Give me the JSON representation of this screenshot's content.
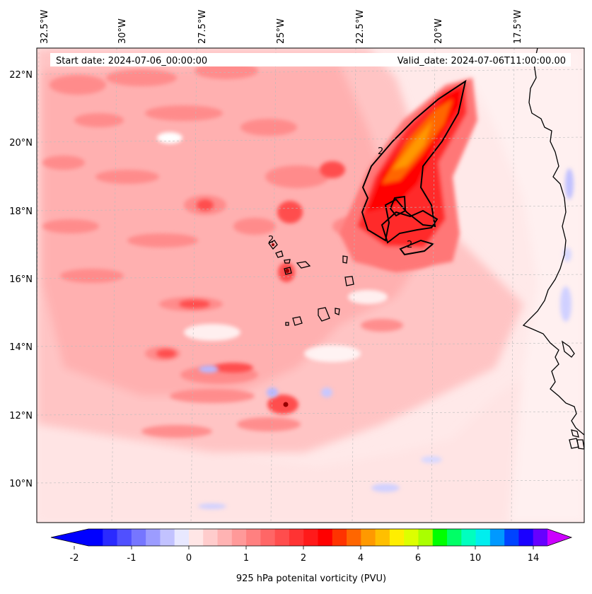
{
  "header": {
    "start_date": "Start date: 2024-07-06_00:00:00",
    "valid_date": "Valid_date: 2024-07-06T11:00:00.00"
  },
  "map": {
    "lon_labels": [
      "32.5°W",
      "30°W",
      "27.5°W",
      "25°W",
      "22.5°W",
      "20°W",
      "17.5°W"
    ],
    "lat_labels": [
      "22°N",
      "20°N",
      "18°N",
      "16°N",
      "14°N",
      "12°N",
      "10°N"
    ],
    "contour_labels": [
      "2",
      "2",
      "2"
    ],
    "gridlines": "dashed",
    "coastline_color": "#000000"
  },
  "colorbar": {
    "title": "925 hPa potenital vorticity (PVU)",
    "ticks": [
      "-2",
      "-1",
      "0",
      "1",
      "2",
      "4",
      "6",
      "10",
      "14"
    ],
    "colors": [
      "#0000ff",
      "#2a2aff",
      "#5050ff",
      "#7676ff",
      "#9c9cff",
      "#c2c2ff",
      "#e8e8ff",
      "#ffe6e6",
      "#ffcccc",
      "#ffb3b3",
      "#ff9999",
      "#ff8080",
      "#ff6666",
      "#ff4d4d",
      "#ff3333",
      "#ff1a1a",
      "#ff0000",
      "#ff3300",
      "#ff6600",
      "#ff9900",
      "#ffbf00",
      "#ffee00",
      "#ddff00",
      "#aaff00",
      "#00ff00",
      "#00ff66",
      "#00ffbf",
      "#00eeee",
      "#0099ff",
      "#0044ff",
      "#1a00ff",
      "#6600ff"
    ],
    "extend_low_color": "#0000ff",
    "extend_high_color": "#cc00ff"
  }
}
